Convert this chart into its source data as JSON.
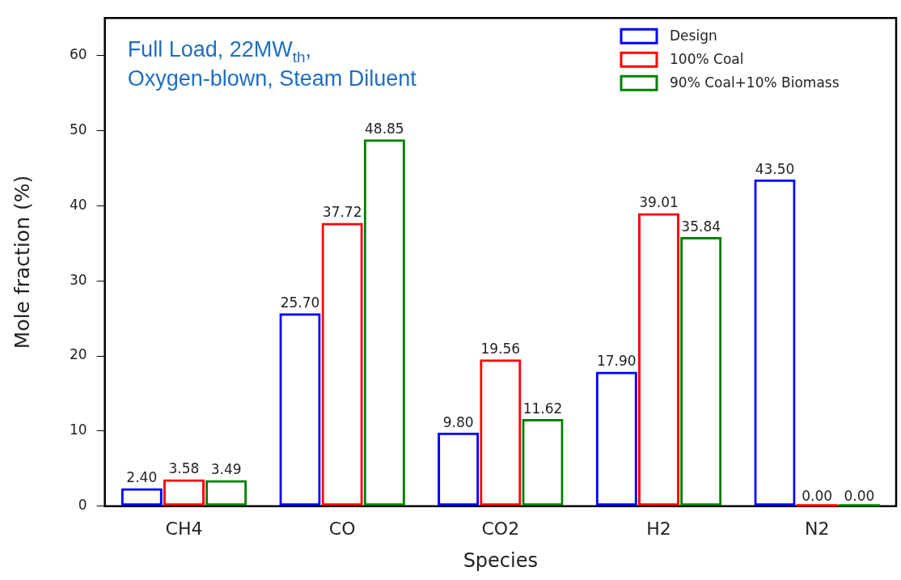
{
  "chart_data": {
    "type": "bar",
    "xlabel": "Species",
    "ylabel": "Mole fraction (%)",
    "annotations": [
      "Full Load, 22MW$_{th}$, Oxygen-blown, Steam Diluent"
    ],
    "categories": [
      "CH4",
      "CO",
      "CO2",
      "H2",
      "N2"
    ],
    "series": [
      {
        "name": "Design",
        "color": "#0000ff",
        "values": [
          2.4,
          25.7,
          9.8,
          17.9,
          43.5
        ],
        "value_labels": [
          "2.40",
          "25.70",
          "9.80",
          "17.90",
          "43.50"
        ]
      },
      {
        "name": "100% Coal",
        "color": "#ff0000",
        "values": [
          3.58,
          37.72,
          19.56,
          39.01,
          0.0
        ],
        "value_labels": [
          "3.58",
          "37.72",
          "19.56",
          "39.01",
          "0.00"
        ]
      },
      {
        "name": "90% Coal+10% Biomass",
        "color": "#008000",
        "values": [
          3.49,
          48.85,
          11.62,
          35.84,
          0.0
        ],
        "value_labels": [
          "3.49",
          "48.85",
          "11.62",
          "35.84",
          "0.00"
        ]
      }
    ],
    "ylim": [
      0,
      65
    ],
    "yticks": [
      0,
      10,
      20,
      30,
      40,
      50,
      60
    ],
    "grid": false,
    "legend": "top right"
  }
}
